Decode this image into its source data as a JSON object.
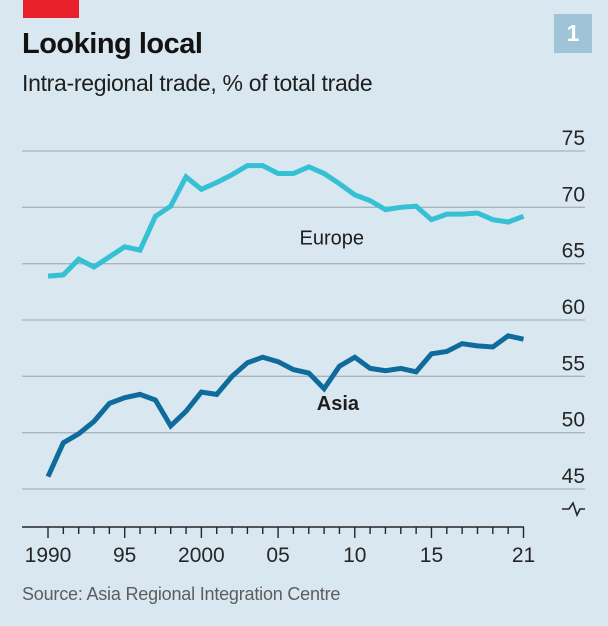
{
  "header": {
    "title": "Looking local",
    "subtitle": "Intra-regional trade, % of total trade",
    "badge": "1"
  },
  "footer": {
    "source": "Source: Asia Regional Integration Centre"
  },
  "colors": {
    "background": "#d8e7f0",
    "red_tag": "#e8202a",
    "badge": "#9fc4d8",
    "europe": "#36c0d3",
    "asia": "#0f6b9c",
    "gridline": "#a9b5bd",
    "axis": "#262626"
  },
  "chart_data": {
    "type": "line",
    "title": "Looking local",
    "subtitle": "Intra-regional trade, % of total trade",
    "xlabel": "",
    "ylabel": "",
    "x": [
      1990,
      1991,
      1992,
      1993,
      1994,
      1995,
      1996,
      1997,
      1998,
      1999,
      2000,
      2001,
      2002,
      2003,
      2004,
      2005,
      2006,
      2007,
      2008,
      2009,
      2010,
      2011,
      2012,
      2013,
      2014,
      2015,
      2016,
      2017,
      2018,
      2019,
      2020,
      2021
    ],
    "xlim": [
      1990,
      2021
    ],
    "ylim": [
      45,
      75
    ],
    "y_axis_break": true,
    "y_axis_side": "right",
    "grid": true,
    "x_ticks": [
      1990,
      1995,
      2000,
      2005,
      2010,
      2015,
      2021
    ],
    "x_tick_labels": [
      "1990",
      "95",
      "2000",
      "05",
      "10",
      "15",
      "21"
    ],
    "y_ticks": [
      75,
      70,
      65,
      60,
      55,
      50,
      45
    ],
    "y_tick_labels": [
      "75",
      "70",
      "65",
      "60",
      "55",
      "50",
      "45"
    ],
    "legend": "inline labels",
    "series": [
      {
        "name": "Europe",
        "label_bold": false,
        "label_anchor_year": 2008.5,
        "label_anchor_value": 66.7,
        "values": [
          63.9,
          64.0,
          65.4,
          64.7,
          65.6,
          66.5,
          66.2,
          69.2,
          70.1,
          72.7,
          71.6,
          72.2,
          72.9,
          73.7,
          73.7,
          73.0,
          73.0,
          73.6,
          73.0,
          72.1,
          71.1,
          70.6,
          69.8,
          70.0,
          70.1,
          68.9,
          69.4,
          69.4,
          69.5,
          68.9,
          68.7,
          69.2
        ]
      },
      {
        "name": "Asia",
        "label_bold": true,
        "label_anchor_year": 2008.9,
        "label_anchor_value": 52.0,
        "values": [
          46.1,
          49.1,
          49.9,
          51.0,
          52.6,
          53.1,
          53.4,
          52.9,
          50.6,
          51.9,
          53.6,
          53.4,
          55.0,
          56.2,
          56.7,
          56.3,
          55.6,
          55.3,
          53.9,
          55.9,
          56.7,
          55.7,
          55.5,
          55.7,
          55.4,
          57.0,
          57.2,
          57.9,
          57.7,
          57.6,
          58.6,
          58.3
        ]
      }
    ]
  }
}
